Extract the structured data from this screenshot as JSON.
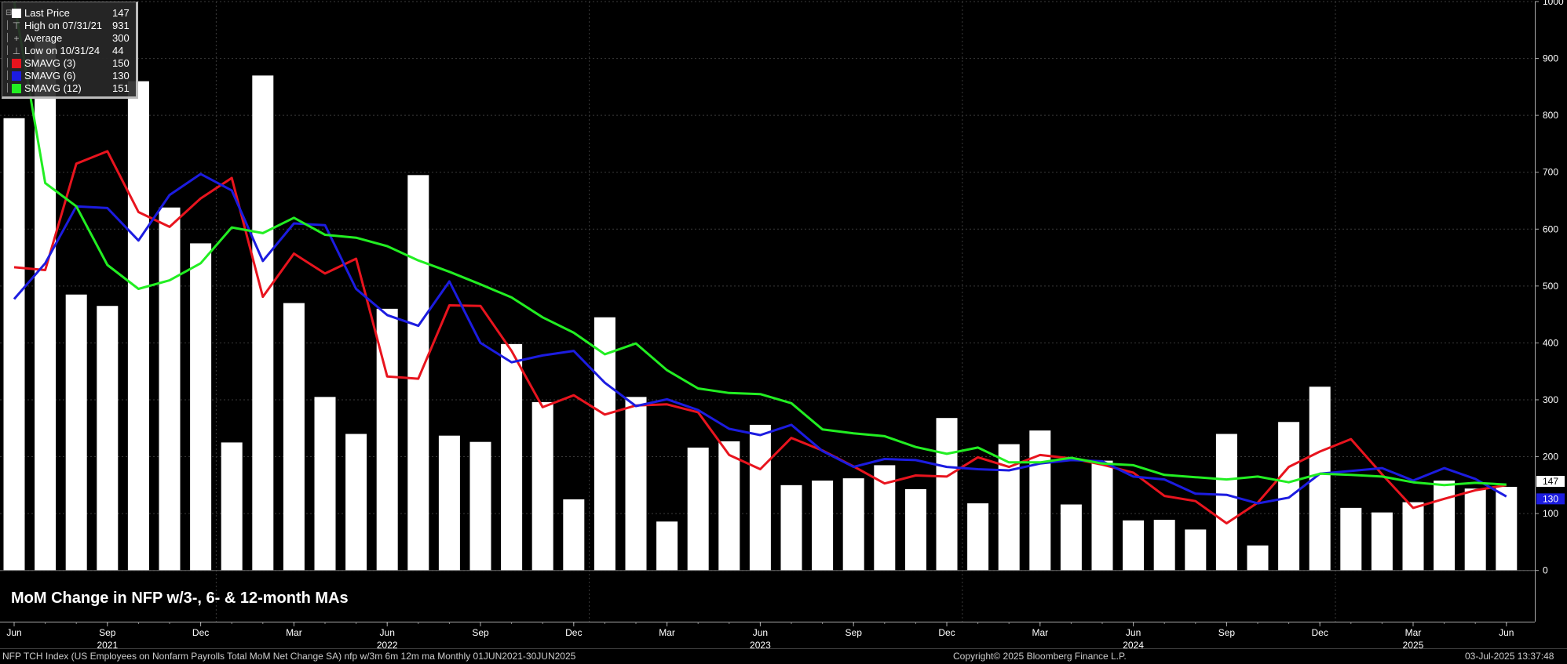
{
  "legend": {
    "items": [
      {
        "label": "Last Price",
        "value": "147",
        "swatch": "#ffffff",
        "symbol": "square"
      },
      {
        "label": "High on 07/31/21",
        "value": "931",
        "symbol": "high-marker"
      },
      {
        "label": "Average",
        "value": "300",
        "symbol": "plus-marker"
      },
      {
        "label": "Low on 10/31/24",
        "value": "44",
        "symbol": "low-marker"
      },
      {
        "label": "SMAVG (3)",
        "value": "150",
        "swatch": "#e8141e",
        "symbol": "square"
      },
      {
        "label": "SMAVG (6)",
        "value": "130",
        "swatch": "#1c1ce0",
        "symbol": "square"
      },
      {
        "label": "SMAVG (12)",
        "value": "151",
        "swatch": "#22ee22",
        "symbol": "square"
      }
    ]
  },
  "chart_title": "MoM Change in NFP w/3-, 6- & 12-month MAs",
  "footer": {
    "left": "NFP TCH Index (US Employees on Nonfarm Payrolls Total MoM Net Change SA) nfp w/3m 6m 12m ma  Monthly 01JUN2021-30JUN2025",
    "center": "Copyright© 2025 Bloomberg Finance L.P.",
    "right": "03-Jul-2025 13:37:48"
  },
  "colors": {
    "background": "#000000",
    "bars": "#ffffff",
    "sma3": "#e8141e",
    "sma6": "#1c1ce0",
    "sma12": "#22ee22",
    "last_label_bg": "#ffffff",
    "sma6_label_bg": "#1c1ce0"
  },
  "chart_data": {
    "type": "bar",
    "x": [
      "2021-06",
      "2021-07",
      "2021-08",
      "2021-09",
      "2021-10",
      "2021-11",
      "2021-12",
      "2022-01",
      "2022-02",
      "2022-03",
      "2022-04",
      "2022-05",
      "2022-06",
      "2022-07",
      "2022-08",
      "2022-09",
      "2022-10",
      "2022-11",
      "2022-12",
      "2023-01",
      "2023-02",
      "2023-03",
      "2023-04",
      "2023-05",
      "2023-06",
      "2023-07",
      "2023-08",
      "2023-09",
      "2023-10",
      "2023-11",
      "2023-12",
      "2024-01",
      "2024-02",
      "2024-03",
      "2024-04",
      "2024-05",
      "2024-06",
      "2024-07",
      "2024-08",
      "2024-09",
      "2024-10",
      "2024-11",
      "2024-12",
      "2025-01",
      "2025-02",
      "2025-03",
      "2025-04",
      "2025-05",
      "2025-06"
    ],
    "values": [
      795,
      931,
      485,
      465,
      860,
      638,
      575,
      225,
      870,
      470,
      305,
      240,
      460,
      695,
      237,
      226,
      398,
      296,
      125,
      445,
      305,
      86,
      216,
      227,
      256,
      150,
      158,
      162,
      185,
      143,
      268,
      118,
      222,
      246,
      116,
      193,
      88,
      89,
      72,
      240,
      44,
      261,
      323,
      110,
      102,
      120,
      158,
      144,
      147
    ],
    "series": [
      {
        "name": "SMAVG (3)",
        "values": [
          533,
          528,
          715,
          737,
          630,
          604,
          654,
          690,
          481,
          557,
          522,
          548,
          341,
          337,
          466,
          465,
          386,
          287,
          308,
          274,
          290,
          292,
          278,
          203,
          178,
          233,
          211,
          183,
          153,
          167,
          165,
          199,
          182,
          203,
          197,
          186,
          172,
          131,
          122,
          83,
          119,
          182,
          209,
          231,
          169,
          110,
          126,
          141,
          150
        ]
      },
      {
        "name": "SMAVG (6)",
        "values": [
          477,
          540,
          640,
          637,
          580,
          660,
          697,
          668,
          544,
          610,
          607,
          495,
          449,
          430,
          508,
          400,
          366,
          378,
          386,
          330,
          289,
          301,
          282,
          249,
          238,
          256,
          210,
          182,
          196,
          194,
          182,
          178,
          176,
          188,
          194,
          192,
          165,
          160,
          135,
          133,
          118,
          128,
          170,
          175,
          180,
          158,
          180,
          161,
          130
        ]
      },
      {
        "name": "SMAVG (12)",
        "values": [
          1000,
          681,
          640,
          537,
          495,
          510,
          540,
          603,
          593,
          620,
          590,
          585,
          570,
          545,
          525,
          503,
          480,
          445,
          418,
          380,
          399,
          352,
          320,
          312,
          310,
          294,
          248,
          241,
          236,
          217,
          205,
          216,
          190,
          190,
          198,
          188,
          185,
          168,
          164,
          160,
          165,
          155,
          170,
          168,
          165,
          155,
          150,
          154,
          151
        ]
      }
    ],
    "ylim": [
      -90,
      1000
    ],
    "yticks": [
      0,
      100,
      200,
      300,
      400,
      500,
      600,
      700,
      800,
      900,
      1000
    ],
    "xtick_labels": [
      {
        "m": "2021-06",
        "label": "Jun"
      },
      {
        "m": "2021-09",
        "label": "Sep"
      },
      {
        "m": "2021-12",
        "label": "Dec"
      },
      {
        "m": "2022-03",
        "label": "Mar"
      },
      {
        "m": "2022-06",
        "label": "Jun"
      },
      {
        "m": "2022-09",
        "label": "Sep"
      },
      {
        "m": "2022-12",
        "label": "Dec"
      },
      {
        "m": "2023-03",
        "label": "Mar"
      },
      {
        "m": "2023-06",
        "label": "Jun"
      },
      {
        "m": "2023-09",
        "label": "Sep"
      },
      {
        "m": "2023-12",
        "label": "Dec"
      },
      {
        "m": "2024-03",
        "label": "Mar"
      },
      {
        "m": "2024-06",
        "label": "Jun"
      },
      {
        "m": "2024-09",
        "label": "Sep"
      },
      {
        "m": "2024-12",
        "label": "Dec"
      },
      {
        "m": "2025-03",
        "label": "Mar"
      },
      {
        "m": "2025-06",
        "label": "Jun"
      }
    ],
    "year_labels": [
      {
        "m": "2021-09",
        "label": "2021"
      },
      {
        "m": "2022-06",
        "label": "2022"
      },
      {
        "m": "2023-06",
        "label": "2023"
      },
      {
        "m": "2024-06",
        "label": "2024"
      },
      {
        "m": "2025-03",
        "label": "2025"
      }
    ],
    "last_value_labels": [
      {
        "value": 147,
        "label": "147"
      },
      {
        "value": 130,
        "label": "130"
      }
    ],
    "grid": true,
    "legend_position": "top-left"
  }
}
